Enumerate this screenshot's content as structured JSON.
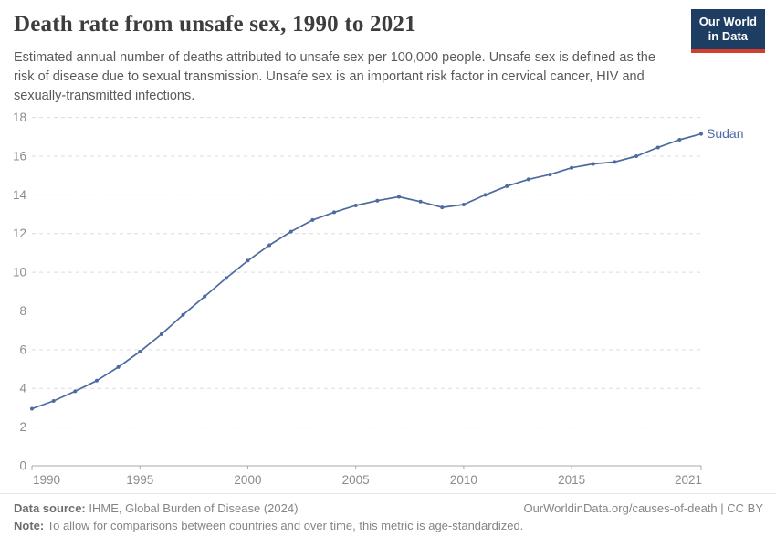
{
  "header": {
    "title": "Death rate from unsafe sex, 1990 to 2021",
    "subtitle": "Estimated annual number of deaths attributed to unsafe sex per 100,000 people. Unsafe sex is defined as the risk of disease due to sexual transmission. Unsafe sex is an important risk factor in cervical cancer, HIV and sexually-transmitted infections."
  },
  "logo": {
    "line1": "Our World",
    "line2": "in Data",
    "bg_color": "#1d3d63",
    "stripe_color": "#d13e2c"
  },
  "chart_data": {
    "type": "line",
    "title": "Death rate from unsafe sex, 1990 to 2021",
    "xlabel": "",
    "ylabel": "",
    "xlim": [
      1990,
      2021
    ],
    "ylim": [
      0,
      18
    ],
    "x_ticks": [
      1990,
      1995,
      2000,
      2005,
      2010,
      2015,
      2021
    ],
    "y_ticks": [
      0,
      2,
      4,
      6,
      8,
      10,
      12,
      14,
      16,
      18
    ],
    "grid": "horizontal-dashed",
    "legend_position": "end-of-line-label",
    "x": [
      1990,
      1991,
      1992,
      1993,
      1994,
      1995,
      1996,
      1997,
      1998,
      1999,
      2000,
      2001,
      2002,
      2003,
      2004,
      2005,
      2006,
      2007,
      2008,
      2009,
      2010,
      2011,
      2012,
      2013,
      2014,
      2015,
      2016,
      2017,
      2018,
      2019,
      2020,
      2021
    ],
    "series": [
      {
        "name": "Sudan",
        "color": "#4c6a9f",
        "values": [
          2.95,
          3.35,
          3.85,
          4.4,
          5.1,
          5.9,
          6.8,
          7.8,
          8.75,
          9.7,
          10.6,
          11.4,
          12.1,
          12.7,
          13.1,
          13.45,
          13.7,
          13.9,
          13.65,
          13.35,
          13.5,
          14.0,
          14.45,
          14.8,
          15.05,
          15.4,
          15.6,
          15.7,
          16.0,
          16.45,
          16.85,
          17.15
        ]
      }
    ],
    "colors": {
      "gridline": "#dcdcdc",
      "axis": "#a8a8a8",
      "tick_label": "#8b8b8b"
    }
  },
  "footer": {
    "source_label": "Data source:",
    "source_text": " IHME, Global Burden of Disease (2024)",
    "attribution": "OurWorldinData.org/causes-of-death | CC BY",
    "note_label": "Note:",
    "note_text": " To allow for comparisons between countries and over time, this metric is age-standardized."
  }
}
